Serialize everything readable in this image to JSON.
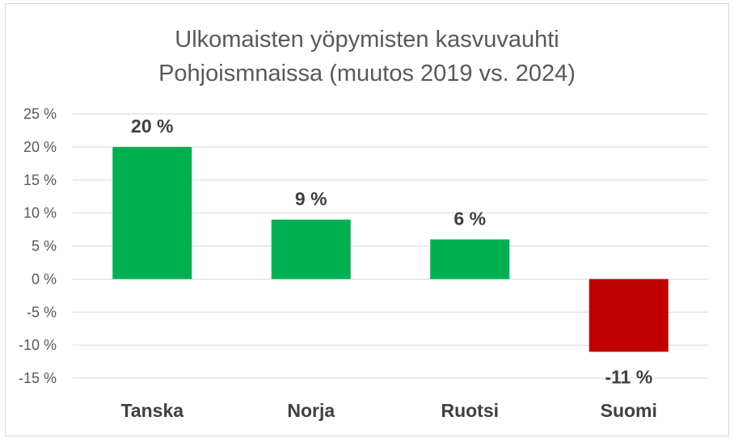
{
  "chart_data": {
    "type": "bar",
    "title_line1": "Ulkomaisten yöpymisten kasvuvauhti",
    "title_line2": "Pohjoismnaissa (muutos 2019 vs. 2024)",
    "categories": [
      "Tanska",
      "Norja",
      "Ruotsi",
      "Suomi"
    ],
    "values": [
      20,
      9,
      6,
      -11
    ],
    "data_labels": [
      "20 %",
      "9 %",
      "6 %",
      "-11 %"
    ],
    "bar_colors": [
      "#00b050",
      "#00b050",
      "#00b050",
      "#c00000"
    ],
    "ylim": [
      -15,
      25
    ],
    "yticks": [
      25,
      20,
      15,
      10,
      5,
      0,
      -5,
      -10,
      -15
    ],
    "ytick_labels": [
      "25 %",
      "20 %",
      "15 %",
      "10 %",
      "5 %",
      "0 %",
      "-5 %",
      "-10 %",
      "-15 %"
    ],
    "grid": true,
    "xlabel": "",
    "ylabel": ""
  }
}
